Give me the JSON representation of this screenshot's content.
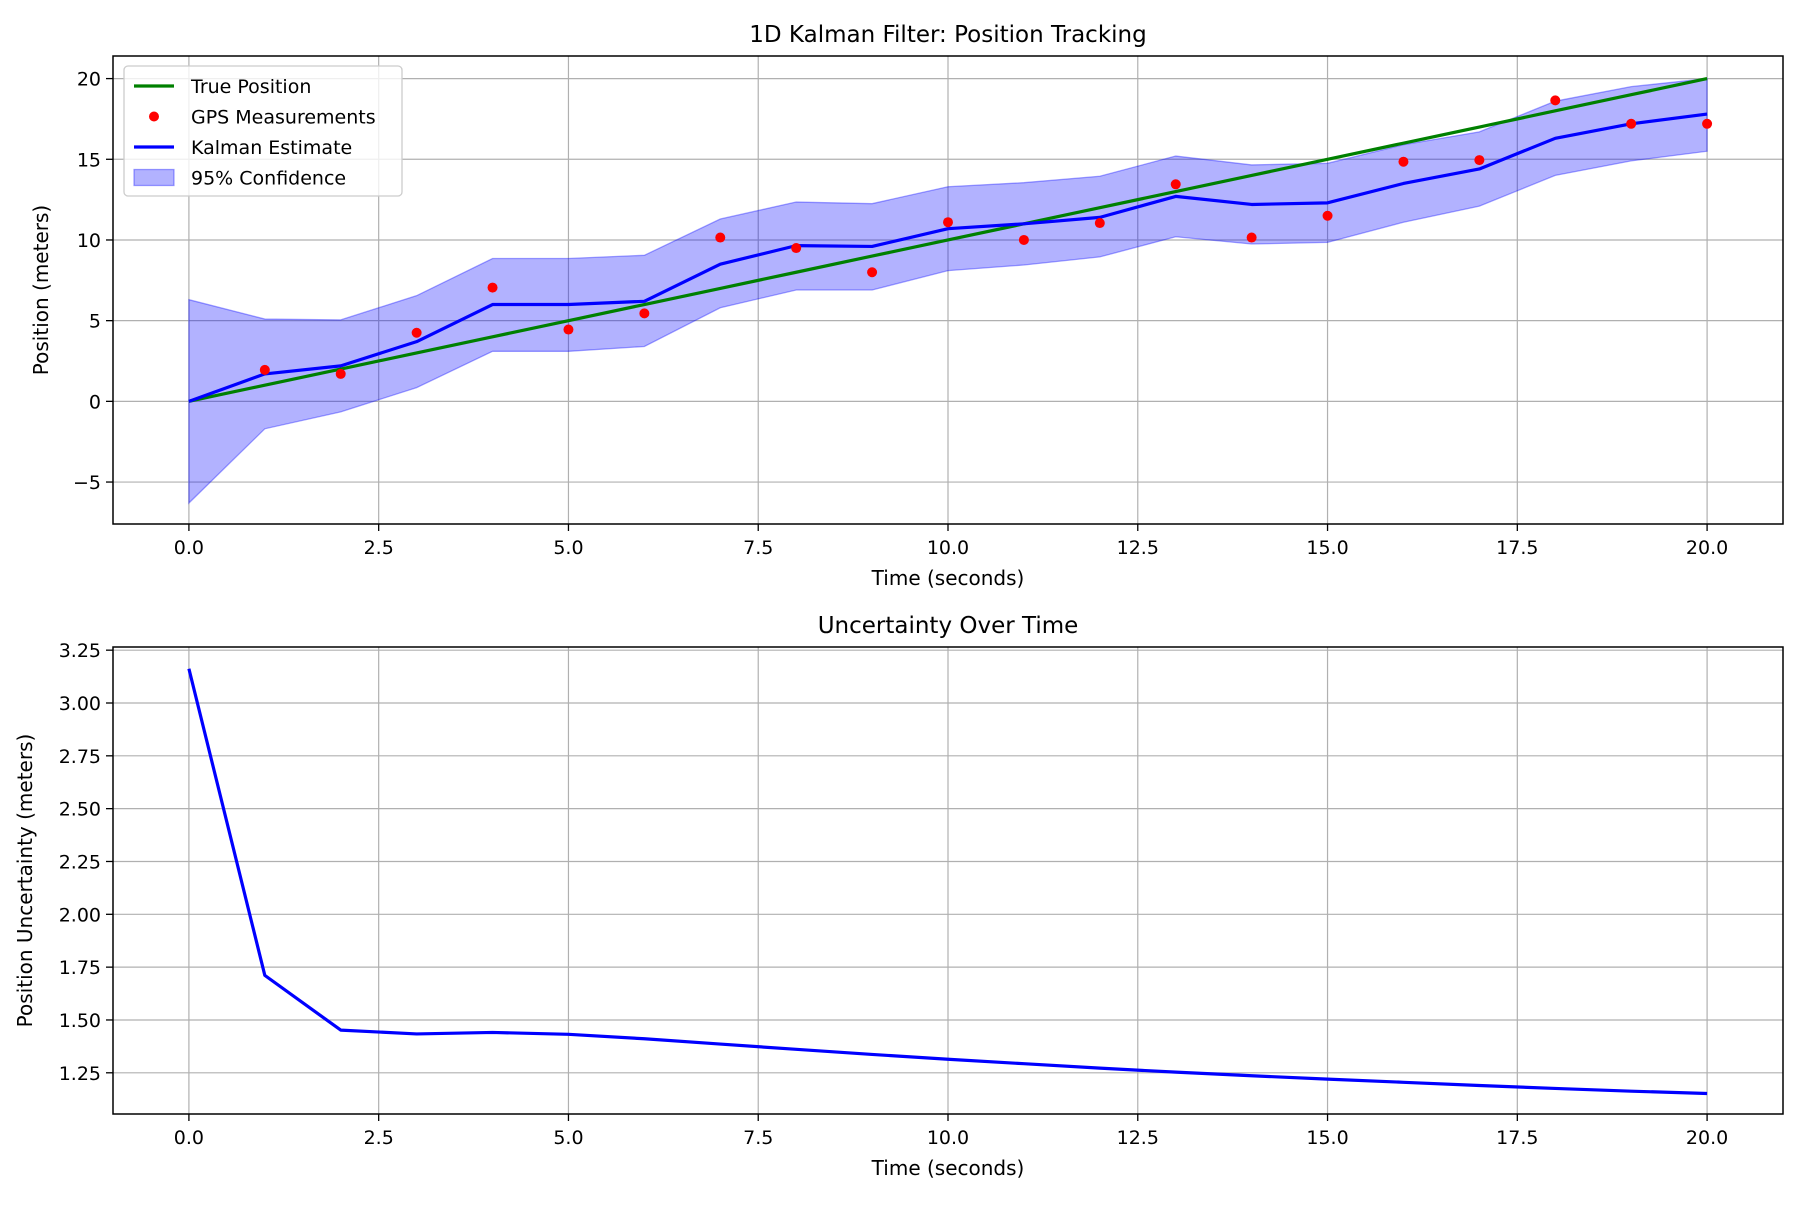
{
  "chart_data": [
    {
      "type": "line",
      "title": "1D Kalman Filter: Position Tracking",
      "xlabel": "Time (seconds)",
      "ylabel": "Position (meters)",
      "xlim": [
        -1.0,
        21.0
      ],
      "ylim": [
        -7.6,
        21.4
      ],
      "xticks": [
        0.0,
        2.5,
        5.0,
        7.5,
        10.0,
        12.5,
        15.0,
        17.5,
        20.0
      ],
      "xtick_labels": [
        "0.0",
        "2.5",
        "5.0",
        "7.5",
        "10.0",
        "12.5",
        "15.0",
        "17.5",
        "20.0"
      ],
      "yticks": [
        -5,
        0,
        5,
        10,
        15,
        20
      ],
      "ytick_labels": [
        "−5",
        "0",
        "5",
        "10",
        "15",
        "20"
      ],
      "grid": true,
      "legend_position": "top-left",
      "x": [
        0,
        1,
        2,
        3,
        4,
        5,
        6,
        7,
        8,
        9,
        10,
        11,
        12,
        13,
        14,
        15,
        16,
        17,
        18,
        19,
        20
      ],
      "series": [
        {
          "name": "True Position",
          "kind": "line",
          "color": "#008000",
          "values": [
            0,
            1,
            2,
            3,
            4,
            5,
            6,
            7,
            8,
            9,
            10,
            11,
            12,
            13,
            14,
            15,
            16,
            17,
            18,
            19,
            20
          ]
        },
        {
          "name": "GPS Measurements",
          "kind": "scatter",
          "color": "#ff0000",
          "x": [
            1,
            2,
            3,
            4,
            5,
            6,
            7,
            8,
            9,
            10,
            11,
            12,
            13,
            14,
            15,
            16,
            17,
            18,
            19,
            20
          ],
          "values": [
            1.95,
            1.7,
            4.25,
            7.05,
            4.45,
            5.45,
            10.15,
            9.5,
            8.0,
            11.1,
            10.0,
            11.05,
            13.45,
            10.15,
            11.5,
            14.85,
            14.95,
            18.65,
            17.2,
            17.2
          ]
        },
        {
          "name": "Kalman Estimate",
          "kind": "line",
          "color": "#0000ff",
          "values": [
            0,
            1.7,
            2.2,
            3.7,
            6.0,
            6.0,
            6.2,
            8.5,
            9.65,
            9.6,
            10.7,
            11.0,
            11.4,
            12.7,
            12.2,
            12.3,
            13.5,
            14.4,
            16.3,
            17.2,
            17.8
          ]
        },
        {
          "name": "95% Confidence",
          "kind": "band",
          "color": "#0000ff",
          "lower": [
            -6.3,
            -1.7,
            -0.65,
            0.85,
            3.1,
            3.1,
            3.4,
            5.8,
            6.9,
            6.9,
            8.1,
            8.45,
            8.95,
            10.2,
            9.75,
            9.85,
            11.1,
            12.1,
            14.0,
            14.9,
            15.5
          ],
          "upper": [
            6.3,
            5.1,
            5.05,
            6.55,
            8.85,
            8.85,
            9.05,
            11.3,
            12.35,
            12.25,
            13.3,
            13.55,
            13.95,
            15.2,
            14.65,
            14.75,
            15.9,
            16.7,
            18.6,
            19.5,
            20.0
          ]
        }
      ]
    },
    {
      "type": "line",
      "title": "Uncertainty Over Time",
      "xlabel": "Time (seconds)",
      "ylabel": "Position Uncertainty (meters)",
      "xlim": [
        -1.0,
        21.0
      ],
      "ylim": [
        1.055,
        3.265
      ],
      "xticks": [
        0.0,
        2.5,
        5.0,
        7.5,
        10.0,
        12.5,
        15.0,
        17.5,
        20.0
      ],
      "xtick_labels": [
        "0.0",
        "2.5",
        "5.0",
        "7.5",
        "10.0",
        "12.5",
        "15.0",
        "17.5",
        "20.0"
      ],
      "yticks": [
        1.25,
        1.5,
        1.75,
        2.0,
        2.25,
        2.5,
        2.75,
        3.0,
        3.25
      ],
      "ytick_labels": [
        "1.25",
        "1.50",
        "1.75",
        "2.00",
        "2.25",
        "2.50",
        "2.75",
        "3.00",
        "3.25"
      ],
      "grid": true,
      "x": [
        0,
        1,
        2,
        3,
        4,
        5,
        6,
        7,
        8,
        9,
        10,
        11,
        12,
        13,
        14,
        15,
        16,
        17,
        18,
        19,
        20
      ],
      "series": [
        {
          "name": "Position Uncertainty",
          "kind": "line",
          "color": "#0000ff",
          "values": [
            3.162,
            1.711,
            1.452,
            1.434,
            1.441,
            1.432,
            1.411,
            1.386,
            1.361,
            1.337,
            1.314,
            1.293,
            1.272,
            1.253,
            1.236,
            1.22,
            1.205,
            1.19,
            1.176,
            1.163,
            1.152
          ]
        }
      ]
    }
  ]
}
